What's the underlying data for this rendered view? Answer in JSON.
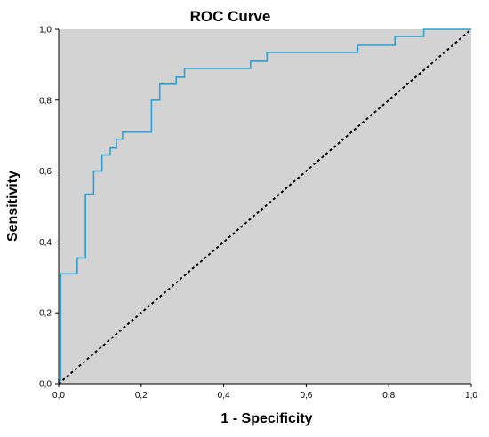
{
  "chart_data": {
    "type": "line",
    "title": "ROC Curve",
    "xlabel": "1 - Specificity",
    "ylabel": "Sensitivity",
    "xlim": [
      0,
      1
    ],
    "ylim": [
      0,
      1
    ],
    "x_ticks": [
      0.0,
      0.2,
      0.4,
      0.6,
      0.8,
      1.0
    ],
    "x_tick_labels": [
      "0,0",
      "0,2",
      "0,4",
      "0,6",
      "0,8",
      "1,0"
    ],
    "y_ticks": [
      0.0,
      0.2,
      0.4,
      0.6,
      0.8,
      1.0
    ],
    "y_tick_labels": [
      "0,0",
      "0,2",
      "0,4",
      "0,6",
      "0,8",
      "1,0"
    ],
    "grid": false,
    "legend": "none",
    "background_color": "#d3d3d3",
    "series": [
      {
        "style": "solid",
        "color": "#2ea0d2",
        "x": [
          0,
          0,
          0.005,
          0.005,
          0.045,
          0.045,
          0.065,
          0.065,
          0.085,
          0.085,
          0.105,
          0.105,
          0.125,
          0.125,
          0.14,
          0.14,
          0.155,
          0.155,
          0.165,
          0.165,
          0.225,
          0.225,
          0.245,
          0.245,
          0.285,
          0.285,
          0.305,
          0.305,
          0.325,
          0.325,
          0.465,
          0.465,
          0.505,
          0.505,
          0.725,
          0.725,
          0.815,
          0.815,
          0.885,
          0.885,
          1.0
        ],
        "y": [
          0,
          0.01,
          0.01,
          0.31,
          0.31,
          0.355,
          0.355,
          0.535,
          0.535,
          0.6,
          0.6,
          0.645,
          0.645,
          0.665,
          0.665,
          0.69,
          0.69,
          0.71,
          0.71,
          0.71,
          0.71,
          0.8,
          0.8,
          0.845,
          0.845,
          0.865,
          0.865,
          0.89,
          0.89,
          0.89,
          0.89,
          0.91,
          0.91,
          0.935,
          0.935,
          0.955,
          0.955,
          0.98,
          0.98,
          1.0,
          1.0
        ]
      },
      {
        "style": "dashed",
        "color": "#000000",
        "x": [
          0,
          1
        ],
        "y": [
          0,
          1
        ]
      }
    ]
  }
}
